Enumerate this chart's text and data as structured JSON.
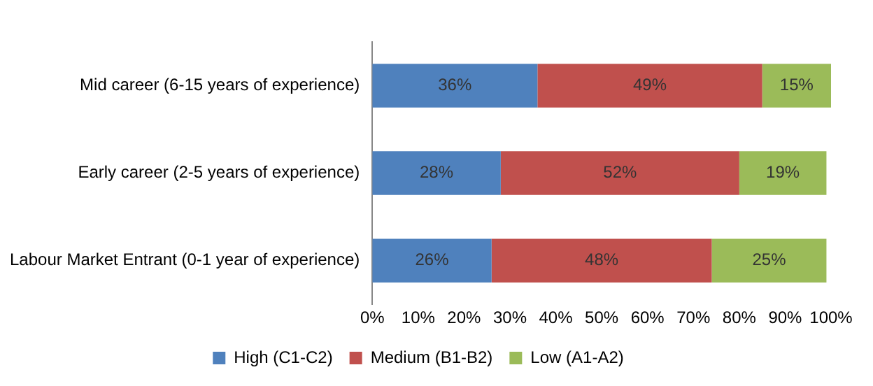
{
  "chart_data": {
    "type": "bar",
    "orientation": "horizontal",
    "stacked": true,
    "categories": [
      "Mid career (6-15 years of experience)",
      "Early career (2-5 years of experience)",
      "Labour Market Entrant (0-1 year of experience)"
    ],
    "series": [
      {
        "name": "High (C1-C2)",
        "color": "#4f81bd",
        "values": [
          36,
          28,
          26
        ],
        "value_labels": [
          "36%",
          "28%",
          "26%"
        ]
      },
      {
        "name": "Medium (B1-B2)",
        "color": "#c0504d",
        "values": [
          49,
          52,
          48
        ],
        "value_labels": [
          "49%",
          "52%",
          "48%"
        ]
      },
      {
        "name": "Low (A1-A2)",
        "color": "#9bbb59",
        "values": [
          15,
          19,
          25
        ],
        "value_labels": [
          "15%",
          "19%",
          "25%"
        ]
      }
    ],
    "xlim": [
      0,
      100
    ],
    "xticks": [
      {
        "value": 0,
        "label": "0%"
      },
      {
        "value": 10,
        "label": "10%"
      },
      {
        "value": 20,
        "label": "20%"
      },
      {
        "value": 30,
        "label": "30%"
      },
      {
        "value": 40,
        "label": "40%"
      },
      {
        "value": 50,
        "label": "50%"
      },
      {
        "value": 60,
        "label": "60%"
      },
      {
        "value": 70,
        "label": "70%"
      },
      {
        "value": 80,
        "label": "80%"
      },
      {
        "value": 90,
        "label": "90%"
      },
      {
        "value": 100,
        "label": "100%"
      }
    ],
    "grid": false,
    "legend": "bottom"
  }
}
